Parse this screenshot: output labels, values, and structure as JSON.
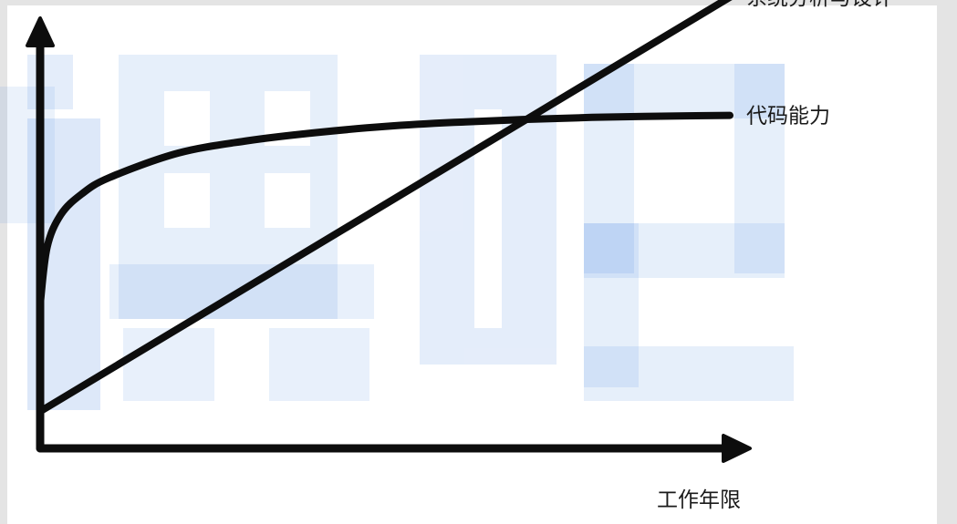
{
  "watermark": {
    "text": "课吧",
    "color": "#1f6ad6"
  },
  "chart_data": {
    "type": "line",
    "xlabel": "工作年限",
    "ylabel": "",
    "xlim": [
      0,
      10
    ],
    "ylim": [
      0,
      10
    ],
    "grid": false,
    "legend": "none",
    "line_color": "#0d0d0d",
    "series": [
      {
        "name": "系统分析与设计",
        "x": [
          0,
          10
        ],
        "y": [
          0.9,
          11
        ]
      },
      {
        "name": "代码能力",
        "x": [
          0,
          0.1,
          0.3,
          0.6,
          1,
          2,
          3,
          4,
          5,
          6,
          7,
          8,
          9,
          10
        ],
        "y": [
          3.5,
          4.9,
          5.7,
          6.2,
          6.6,
          7.2,
          7.5,
          7.7,
          7.85,
          7.95,
          8.02,
          8.07,
          8.1,
          8.12
        ]
      }
    ]
  }
}
